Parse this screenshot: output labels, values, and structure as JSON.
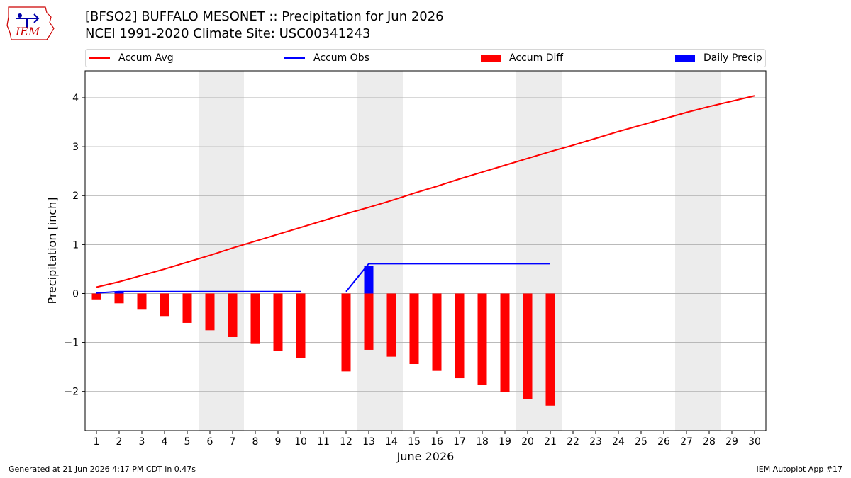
{
  "title_line1": "[BFSO2] BUFFALO MESONET :: Precipitation for Jun 2026",
  "title_line2": "NCEI 1991-2020 Climate Site: USC00341243",
  "logo_text": "IEM",
  "footer_left": "Generated at 21 Jun 2026 4:17 PM CDT in 0.47s",
  "footer_right": "IEM Autoplot App #17",
  "colors": {
    "avg": "#ff0000",
    "obs": "#0000ff",
    "diff": "#ff0000",
    "daily": "#0000ff",
    "weekend": "#ececec",
    "grid": "#b0b0b0"
  },
  "chart_data": {
    "type": "line",
    "xlabel": "June 2026",
    "ylabel": "Precipitation [inch]",
    "ylim": [
      -2.8,
      4.55
    ],
    "xlim": [
      0.5,
      30.5
    ],
    "yticks": [
      -2,
      -1,
      0,
      1,
      2,
      3,
      4
    ],
    "ytick_labels": [
      "−2",
      "−1",
      "0",
      "1",
      "2",
      "3",
      "4"
    ],
    "xticks": [
      1,
      2,
      3,
      4,
      5,
      6,
      7,
      8,
      9,
      10,
      11,
      12,
      13,
      14,
      15,
      16,
      17,
      18,
      19,
      20,
      21,
      22,
      23,
      24,
      25,
      26,
      27,
      28,
      29,
      30
    ],
    "weekend_days": [
      6,
      7,
      13,
      14,
      20,
      21,
      27,
      28
    ],
    "grid": "y",
    "legend_position": "top",
    "series": [
      {
        "name": "Accum Avg",
        "type": "line",
        "x": [
          1,
          2,
          3,
          4,
          5,
          6,
          7,
          8,
          9,
          10,
          11,
          12,
          13,
          14,
          15,
          16,
          17,
          18,
          19,
          20,
          21,
          22,
          23,
          24,
          25,
          26,
          27,
          28,
          29,
          30
        ],
        "values": [
          0.13,
          0.24,
          0.37,
          0.5,
          0.64,
          0.78,
          0.93,
          1.07,
          1.21,
          1.35,
          1.49,
          1.63,
          1.76,
          1.9,
          2.05,
          2.19,
          2.34,
          2.48,
          2.62,
          2.76,
          2.9,
          3.03,
          3.17,
          3.31,
          3.44,
          3.57,
          3.7,
          3.82,
          3.93,
          4.04
        ]
      },
      {
        "name": "Accum Obs",
        "type": "line",
        "x": [
          1,
          2,
          3,
          4,
          5,
          6,
          7,
          8,
          9,
          10,
          null,
          12,
          13,
          14,
          15,
          16,
          17,
          18,
          19,
          20,
          21
        ],
        "values": [
          0.01,
          0.04,
          0.04,
          0.04,
          0.04,
          0.04,
          0.04,
          0.04,
          0.04,
          0.04,
          null,
          0.04,
          0.61,
          0.61,
          0.61,
          0.61,
          0.61,
          0.61,
          0.61,
          0.61,
          0.61
        ]
      },
      {
        "name": "Accum Diff",
        "type": "bar",
        "x": [
          1,
          2,
          3,
          4,
          5,
          6,
          7,
          8,
          9,
          10,
          12,
          13,
          14,
          15,
          16,
          17,
          18,
          19,
          20,
          21
        ],
        "values": [
          -0.12,
          -0.2,
          -0.33,
          -0.46,
          -0.6,
          -0.75,
          -0.89,
          -1.03,
          -1.17,
          -1.31,
          -1.59,
          -1.15,
          -1.29,
          -1.44,
          -1.58,
          -1.73,
          -1.87,
          -2.01,
          -2.15,
          -2.29
        ]
      },
      {
        "name": "Daily Precip",
        "type": "bar",
        "x": [
          2,
          13
        ],
        "values": [
          0.03,
          0.57
        ]
      }
    ]
  }
}
